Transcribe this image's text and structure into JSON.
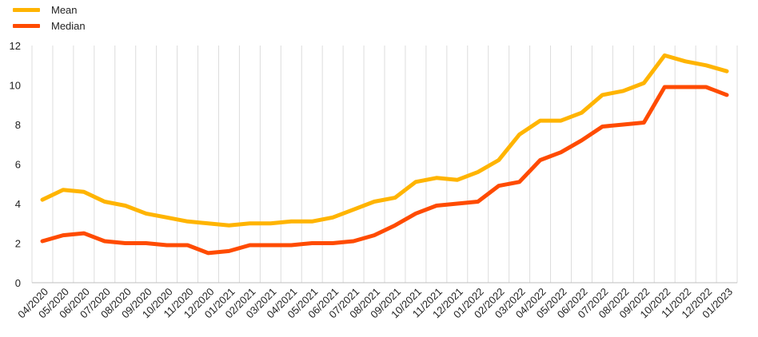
{
  "chart_data": {
    "type": "line",
    "title": "",
    "xlabel": "",
    "ylabel": "",
    "ylim": [
      0,
      12
    ],
    "yticks": [
      0,
      2,
      4,
      6,
      8,
      10,
      12
    ],
    "grid": "vertical",
    "legend_placement": "top-left",
    "categories": [
      "04/2020",
      "05/2020",
      "06/2020",
      "07/2020",
      "08/2020",
      "09/2020",
      "10/2020",
      "11/2020",
      "12/2020",
      "01/2021",
      "02/2021",
      "03/2021",
      "04/2021",
      "05/2021",
      "06/2021",
      "07/2021",
      "08/2021",
      "09/2021",
      "10/2021",
      "11/2021",
      "12/2021",
      "01/2022",
      "02/2022",
      "03/2022",
      "04/2022",
      "05/2022",
      "06/2022",
      "07/2022",
      "08/2022",
      "09/2022",
      "10/2022",
      "11/2022",
      "12/2022",
      "01/2023"
    ],
    "series": [
      {
        "name": "Mean",
        "color": "#FFB400",
        "values": [
          4.2,
          4.7,
          4.6,
          4.1,
          3.9,
          3.5,
          3.3,
          3.1,
          3.0,
          2.9,
          3.0,
          3.0,
          3.1,
          3.1,
          3.3,
          3.7,
          4.1,
          4.3,
          5.1,
          5.3,
          5.2,
          5.6,
          6.2,
          7.5,
          8.2,
          8.2,
          8.6,
          9.5,
          9.7,
          10.1,
          11.5,
          11.2,
          11.0,
          10.7
        ]
      },
      {
        "name": "Median",
        "color": "#FF4B00",
        "values": [
          2.1,
          2.4,
          2.5,
          2.1,
          2.0,
          2.0,
          1.9,
          1.9,
          1.5,
          1.6,
          1.9,
          1.9,
          1.9,
          2.0,
          2.0,
          2.1,
          2.4,
          2.9,
          3.5,
          3.9,
          4.0,
          4.1,
          4.9,
          5.1,
          6.2,
          6.6,
          7.2,
          7.9,
          8.0,
          8.1,
          9.9,
          9.9,
          9.9,
          9.5
        ]
      }
    ]
  }
}
